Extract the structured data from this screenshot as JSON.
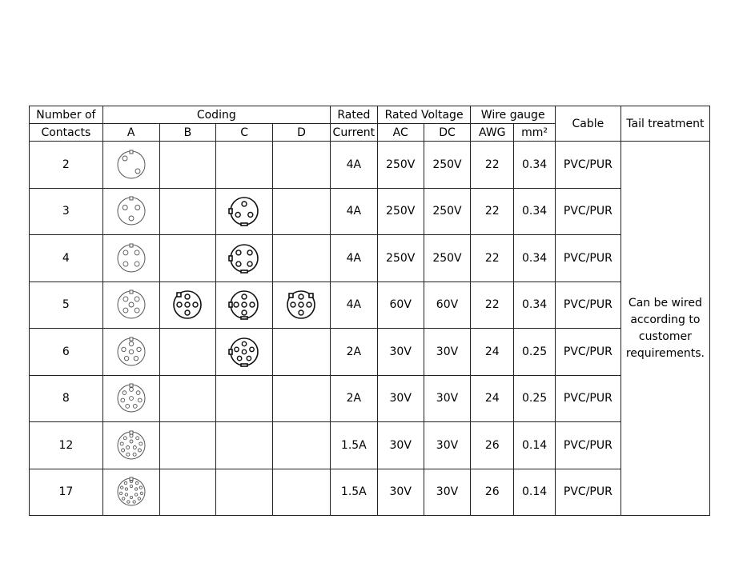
{
  "headers": {
    "contacts": "Number of",
    "contacts2": "Contacts",
    "coding": "Coding",
    "codes": [
      "A",
      "B",
      "C",
      "D"
    ],
    "rated": "Rated",
    "current": "Current",
    "voltage": "Rated Voltage",
    "ac": "AC",
    "dc": "DC",
    "wire": "Wire gauge",
    "awg": "AWG",
    "mm2": "mm²",
    "cable": "Cable",
    "tail": "Tail treatment"
  },
  "tail_text": "Can be wired according to customer requirements.",
  "rows": [
    {
      "contacts": "2",
      "coding": {
        "A": true
      },
      "current": "4A",
      "ac": "250V",
      "dc": "250V",
      "awg": "22",
      "mm2": "0.34",
      "cable": "PVC/PUR"
    },
    {
      "contacts": "3",
      "coding": {
        "A": true,
        "C": true
      },
      "current": "4A",
      "ac": "250V",
      "dc": "250V",
      "awg": "22",
      "mm2": "0.34",
      "cable": "PVC/PUR"
    },
    {
      "contacts": "4",
      "coding": {
        "A": true,
        "C": true
      },
      "current": "4A",
      "ac": "250V",
      "dc": "250V",
      "awg": "22",
      "mm2": "0.34",
      "cable": "PVC/PUR"
    },
    {
      "contacts": "5",
      "coding": {
        "A": true,
        "B": true,
        "C": true,
        "D": true
      },
      "current": "4A",
      "ac": "60V",
      "dc": "60V",
      "awg": "22",
      "mm2": "0.34",
      "cable": "PVC/PUR"
    },
    {
      "contacts": "6",
      "coding": {
        "A": true,
        "C": true
      },
      "current": "2A",
      "ac": "30V",
      "dc": "30V",
      "awg": "24",
      "mm2": "0.25",
      "cable": "PVC/PUR"
    },
    {
      "contacts": "8",
      "coding": {
        "A": true
      },
      "current": "2A",
      "ac": "30V",
      "dc": "30V",
      "awg": "24",
      "mm2": "0.25",
      "cable": "PVC/PUR"
    },
    {
      "contacts": "12",
      "coding": {
        "A": true
      },
      "current": "1.5A",
      "ac": "30V",
      "dc": "30V",
      "awg": "26",
      "mm2": "0.14",
      "cable": "PVC/PUR"
    },
    {
      "contacts": "17",
      "coding": {
        "A": true
      },
      "current": "1.5A",
      "ac": "30V",
      "dc": "30V",
      "awg": "26",
      "mm2": "0.14",
      "cable": "PVC/PUR"
    }
  ]
}
